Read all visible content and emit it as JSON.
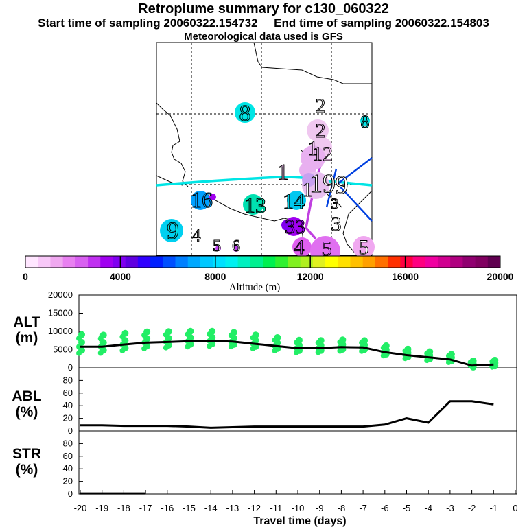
{
  "header": {
    "title": "Retroplume summary for c130_060322",
    "sampling_line": "Start time of sampling 20060322.154732     End time of sampling 20060322.154803",
    "met_line": "Meteorological data used is GFS"
  },
  "map": {
    "plume_labels": [
      {
        "text": "8",
        "color": "#00e5e5"
      },
      {
        "text": "2",
        "color": "#ffffff"
      },
      {
        "text": "8",
        "color": "#00e5e5"
      },
      {
        "text": "2",
        "color": "#f0c0f0"
      },
      {
        "text": "1",
        "color": "#f0c0f0"
      },
      {
        "text": "12",
        "color": "#f0c0f0"
      },
      {
        "text": "1",
        "color": "#f0c0f0"
      },
      {
        "text": "19",
        "color": "#ffffff"
      },
      {
        "text": "1",
        "color": "#ffffff"
      },
      {
        "text": "9",
        "color": "#ffffff"
      },
      {
        "text": "16",
        "color": "#00a0ff"
      },
      {
        "text": "13",
        "color": "#00e0b0"
      },
      {
        "text": "14",
        "color": "#00d0e5"
      },
      {
        "text": "3",
        "color": "#ffffff"
      },
      {
        "text": "9",
        "color": "#00e5e5"
      },
      {
        "text": "4",
        "color": "#ffffff"
      },
      {
        "text": "33",
        "color": "#a000ff"
      },
      {
        "text": "3",
        "color": "#ffffff"
      },
      {
        "text": "5",
        "color": "#ffffff"
      },
      {
        "text": "6",
        "color": "#ffffff"
      },
      {
        "text": "4",
        "color": "#d050ff"
      },
      {
        "text": "5",
        "color": "#e070ff"
      },
      {
        "text": "5",
        "color": "#ffffff"
      }
    ]
  },
  "colorbar": {
    "ticks": [
      "0",
      "4000",
      "8000",
      "12000",
      "16000",
      "20000"
    ],
    "label": "Altitude (m)",
    "colors": [
      "#ffe6ff",
      "#f8c8f8",
      "#f0a8f0",
      "#e880f0",
      "#d860f0",
      "#c030f0",
      "#a000f0",
      "#8000f0",
      "#6000e0",
      "#3000ff",
      "#0020ff",
      "#0050ff",
      "#0080ff",
      "#00a8ff",
      "#00c8ff",
      "#00e0ff",
      "#00f0f0",
      "#00f0c0",
      "#00f090",
      "#00f050",
      "#30f030",
      "#80f020",
      "#b0f020",
      "#e0f020",
      "#ffff00",
      "#ffe000",
      "#ffc000",
      "#ffa000",
      "#ff7000",
      "#ff3000",
      "#ff0040",
      "#ff0080",
      "#f000a0",
      "#d00090",
      "#b00080",
      "#900070",
      "#800060",
      "#600050"
    ]
  },
  "chart_data": [
    {
      "type": "line",
      "panel": "ALT",
      "ylabel_line1": "ALT",
      "ylabel_line2": "(m)",
      "ylim": [
        0,
        20000
      ],
      "yticks": [
        "0",
        "5000",
        "10000",
        "15000",
        "20000"
      ],
      "x": [
        -20,
        -19,
        -18,
        -17,
        -16,
        -15,
        -14,
        -13,
        -12,
        -11,
        -10,
        -9,
        -8,
        -7,
        -6,
        -5,
        -4,
        -3,
        -2,
        -1
      ],
      "values": [
        5800,
        5800,
        6400,
        6900,
        7100,
        7300,
        7400,
        7200,
        6600,
        6000,
        5400,
        5400,
        5700,
        5600,
        4300,
        3500,
        2900,
        2300,
        600,
        900
      ],
      "spread_color": "#22ee66"
    },
    {
      "type": "line",
      "panel": "ABL",
      "ylabel_line1": "ABL",
      "ylabel_line2": "(%)",
      "ylim": [
        0,
        100
      ],
      "yticks": [
        "0",
        "20",
        "40",
        "60",
        "80"
      ],
      "x": [
        -20,
        -19,
        -18,
        -17,
        -16,
        -15,
        -14,
        -13,
        -12,
        -11,
        -10,
        -9,
        -8,
        -7,
        -6,
        -5,
        -4,
        -3,
        -2,
        -1
      ],
      "values": [
        9,
        9,
        8,
        8,
        8,
        7,
        5,
        6,
        7,
        7,
        7,
        7,
        7,
        7,
        10,
        20,
        13,
        47,
        47,
        42
      ]
    },
    {
      "type": "line",
      "panel": "STR",
      "ylabel_line1": "STR",
      "ylabel_line2": "(%)",
      "ylim": [
        0,
        100
      ],
      "yticks": [
        "0",
        "20",
        "40",
        "60",
        "80"
      ],
      "x": [
        -20,
        -19,
        -18,
        -17,
        -16,
        -15,
        -14,
        -13,
        -12,
        -11,
        -10,
        -9,
        -8,
        -7,
        -6,
        -5,
        -4,
        -3,
        -2,
        -1
      ],
      "values": [
        1,
        1,
        1,
        1,
        0,
        0,
        0,
        0,
        0,
        0,
        0,
        0,
        0,
        0,
        0,
        0,
        0,
        0,
        0,
        0
      ],
      "drawn_until": -17
    }
  ],
  "xaxis": {
    "ticks": [
      "-20",
      "-19",
      "-18",
      "-17",
      "-16",
      "-15",
      "-14",
      "-13",
      "-12",
      "-11",
      "-10",
      "-9",
      "-8",
      "-7",
      "-6",
      "-5",
      "-4",
      "-3",
      "-2",
      "-1",
      "0"
    ],
    "xlabel": "Travel time (days)"
  }
}
